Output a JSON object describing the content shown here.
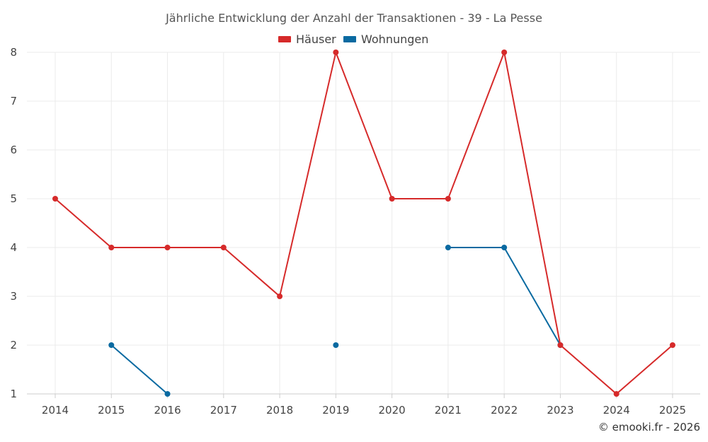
{
  "chart_data": {
    "type": "line",
    "title": "Jährliche Entwicklung der Anzahl der Transaktionen - 39 - La Pesse",
    "categories": [
      "2014",
      "2015",
      "2016",
      "2017",
      "2018",
      "2019",
      "2020",
      "2021",
      "2022",
      "2023",
      "2024",
      "2025"
    ],
    "series": [
      {
        "name": "Häuser",
        "color": "#d62a2a",
        "values": [
          5,
          4,
          4,
          4,
          3,
          8,
          5,
          5,
          8,
          2,
          1,
          2
        ]
      },
      {
        "name": "Wohnungen",
        "color": "#0a6aa1",
        "values": [
          null,
          2,
          1,
          null,
          null,
          2,
          null,
          4,
          4,
          2,
          null,
          null
        ]
      }
    ],
    "ylim": [
      1,
      8
    ],
    "yticks": [
      1,
      2,
      3,
      4,
      5,
      6,
      7,
      8
    ],
    "grid": true,
    "legend": "top-center",
    "xlabel": "",
    "ylabel": ""
  },
  "credit": "© emooki.fr - 2026"
}
